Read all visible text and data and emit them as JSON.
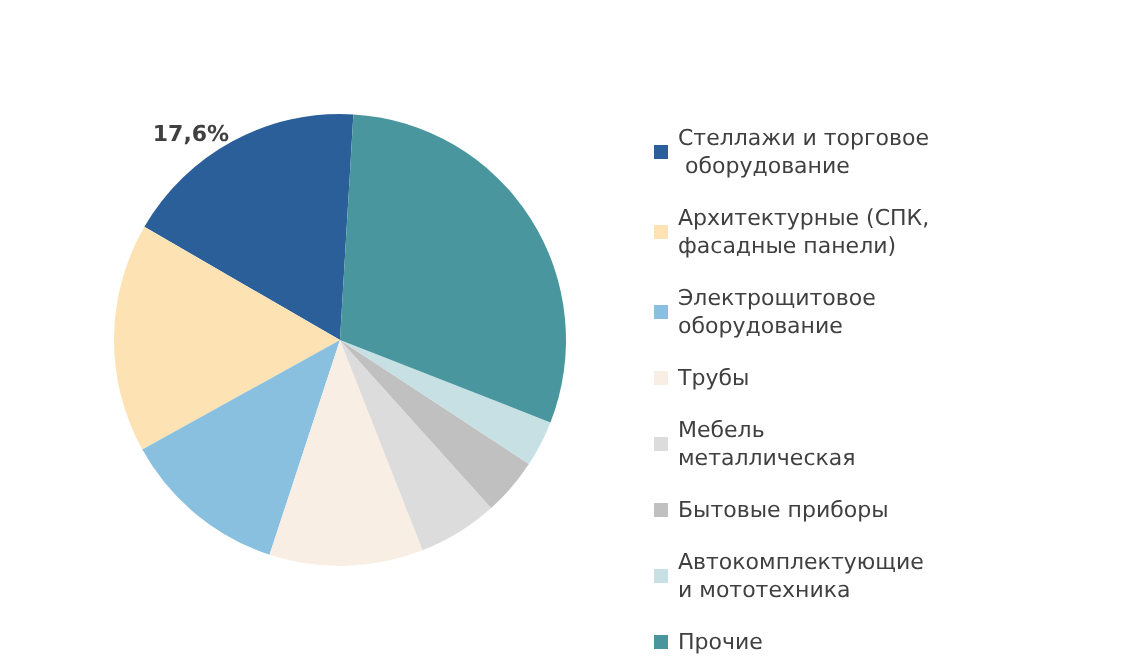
{
  "chart_data": {
    "type": "pie",
    "categories": [
      "Стеллажи и торговое оборудование",
      "Архитектурные (СПК, фасадные панели)",
      "Электрощитовое оборудование",
      "Трубы",
      "Мебель металлическая",
      "Бытовые приборы",
      "Автокомплектующие и мототехника",
      "Прочие"
    ],
    "values": [
      17.6,
      16.4,
      11.9,
      11.0,
      5.7,
      4.1,
      3.3,
      30.0
    ],
    "colors": [
      "#2a5f9a",
      "#fde2b4",
      "#89c0e0",
      "#f9eee4",
      "#dcdcdc",
      "#c0c0c0",
      "#c6e0e4",
      "#4a969f"
    ],
    "value_labels": [
      "17,6%",
      null,
      null,
      null,
      null,
      null,
      null,
      null
    ],
    "legend": "right"
  }
}
